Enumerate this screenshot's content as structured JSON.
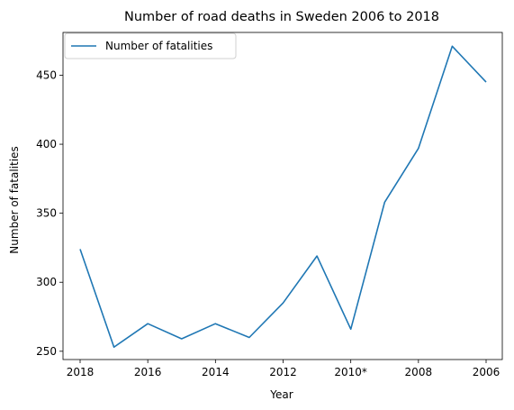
{
  "chart_data": {
    "type": "line",
    "title": "Number of road deaths in Sweden 2006 to 2018",
    "xlabel": "Year",
    "ylabel": "Number of fatalities",
    "categories": [
      "2018",
      "2017",
      "2016",
      "2015",
      "2014",
      "2013",
      "2012",
      "2011",
      "2010*",
      "2009",
      "2008",
      "2007",
      "2006"
    ],
    "x_tick_labels": [
      "2018",
      "2016",
      "2014",
      "2012",
      "2010*",
      "2008",
      "2006"
    ],
    "series": [
      {
        "name": "Number of fatalities",
        "values": [
          324,
          253,
          270,
          259,
          270,
          260,
          285,
          319,
          266,
          358,
          397,
          471,
          445
        ],
        "color": "#1f77b4"
      }
    ],
    "ylim": [
      244,
      481
    ],
    "y_ticks": [
      250,
      300,
      350,
      400,
      450
    ],
    "grid": false,
    "legend_position": "top-left"
  }
}
